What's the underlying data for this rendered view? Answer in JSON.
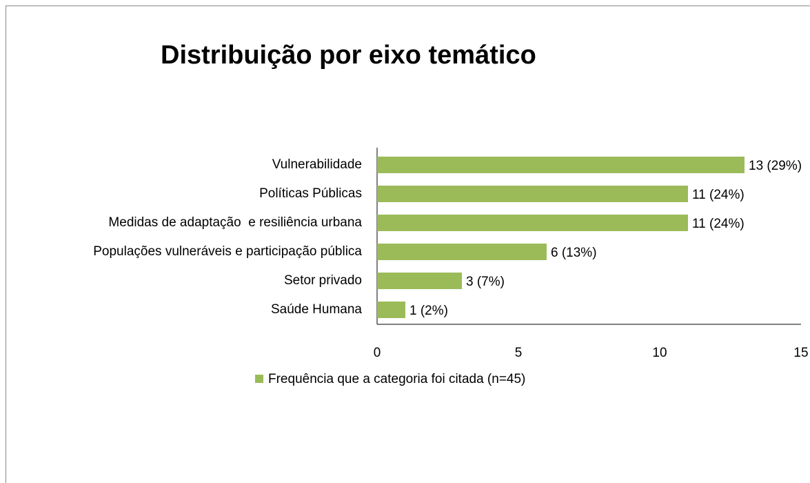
{
  "chart_data": {
    "type": "bar",
    "orientation": "horizontal",
    "title": "Distribuição por eixo temático",
    "categories": [
      "Vulnerabilidade",
      "Políticas Públicas",
      "Medidas de adaptação  e resiliência urbana",
      "Populações vulneráveis e participação pública",
      "Setor privado",
      "Saúde Humana"
    ],
    "series": [
      {
        "name": "Frequência que a categoria foi citada (n=45)",
        "color": "#9bbb59",
        "values": [
          13,
          11,
          11,
          6,
          3,
          1
        ],
        "value_labels": [
          "13 (29%)",
          "11 (24%)",
          "11 (24%)",
          "6 (13%)",
          "3 (7%)",
          "1 (2%)"
        ]
      }
    ],
    "xlim": [
      0,
      15
    ],
    "xticks": [
      0,
      5,
      10,
      15
    ],
    "grid": false,
    "legend": "bottom"
  }
}
